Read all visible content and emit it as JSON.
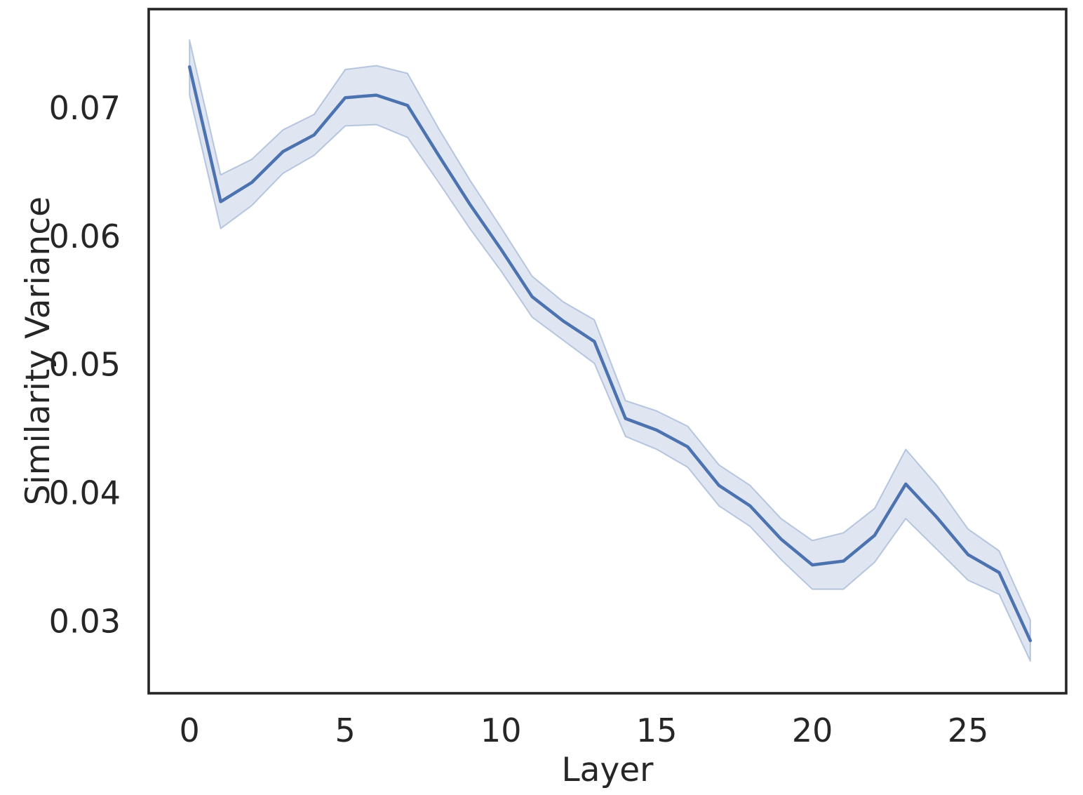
{
  "chart_data": {
    "type": "line",
    "title": "",
    "xlabel": "Layer",
    "ylabel": "Similarity Variance",
    "x": [
      0,
      1,
      2,
      3,
      4,
      5,
      6,
      7,
      8,
      9,
      10,
      11,
      12,
      13,
      14,
      15,
      16,
      17,
      18,
      19,
      20,
      21,
      22,
      23,
      24,
      25,
      26,
      27
    ],
    "series": [
      {
        "name": "similarity-variance",
        "values": [
          0.0732,
          0.0627,
          0.0642,
          0.0666,
          0.0679,
          0.0708,
          0.071,
          0.0702,
          0.0663,
          0.0625,
          0.059,
          0.0553,
          0.0534,
          0.0518,
          0.0458,
          0.0449,
          0.0436,
          0.0406,
          0.039,
          0.0364,
          0.0344,
          0.0347,
          0.0367,
          0.0407,
          0.0381,
          0.0352,
          0.0338,
          0.0285
        ]
      }
    ],
    "ci_lower": [
      0.071,
      0.0606,
      0.0624,
      0.0649,
      0.0663,
      0.0686,
      0.0687,
      0.0677,
      0.0642,
      0.0606,
      0.0573,
      0.0537,
      0.0519,
      0.0501,
      0.0444,
      0.0434,
      0.042,
      0.039,
      0.0374,
      0.0348,
      0.0325,
      0.0325,
      0.0346,
      0.038,
      0.0356,
      0.0332,
      0.0321,
      0.0269
    ],
    "ci_upper": [
      0.0753,
      0.0648,
      0.066,
      0.0683,
      0.0695,
      0.073,
      0.0733,
      0.0727,
      0.0684,
      0.0644,
      0.0607,
      0.0569,
      0.0549,
      0.0535,
      0.0472,
      0.0464,
      0.0452,
      0.0422,
      0.0406,
      0.038,
      0.0363,
      0.0369,
      0.0388,
      0.0434,
      0.0406,
      0.0372,
      0.0355,
      0.0301
    ],
    "xticks": [
      0,
      5,
      10,
      15,
      20,
      25
    ],
    "yticks": [
      0.03,
      0.04,
      0.05,
      0.06,
      0.07
    ],
    "ytick_labels": [
      "0.03",
      "0.04",
      "0.05",
      "0.06",
      "0.07"
    ],
    "xlim": [
      -1.31,
      28.15
    ],
    "ylim": [
      0.0244,
      0.0777
    ],
    "grid": false,
    "legend": "none",
    "line_color": "#4C72B0",
    "band_fill_color": "rgba(76,114,176,0.18)",
    "band_edge_color": "rgba(76,114,176,0.35)",
    "spine_color": "#262626",
    "text_color": "#262626",
    "background_color": "#FFFFFF"
  }
}
